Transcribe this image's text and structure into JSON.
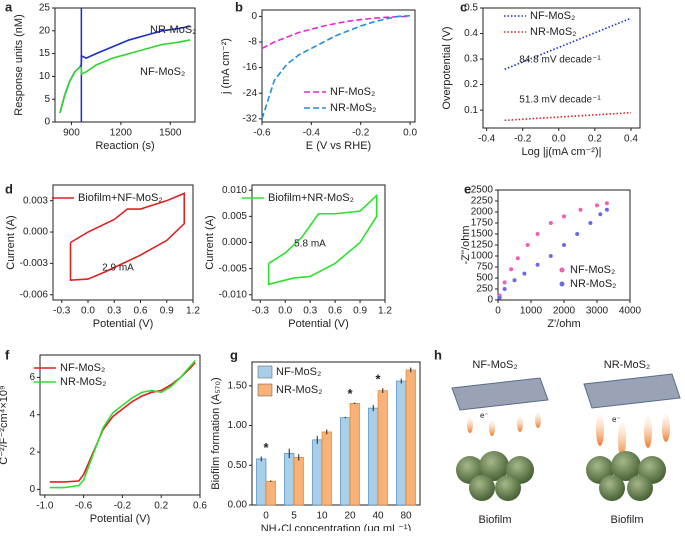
{
  "chart_data": [
    {
      "panel": "a",
      "type": "line",
      "x_label": "Reaction (s)",
      "y_label": "Response units (nM)",
      "x": [
        830,
        860,
        890,
        920,
        950,
        959,
        961,
        990,
        1050,
        1150,
        1250,
        1350,
        1450,
        1550,
        1620
      ],
      "series": [
        {
          "name": "NR-MoS₂",
          "color": "#1a2fc9",
          "line_style": "solid",
          "values": [
            2,
            6,
            9,
            11,
            12,
            12.5,
            14.5,
            14,
            15,
            16.5,
            18,
            19,
            20,
            20.5,
            21
          ]
        },
        {
          "name": "NF-MoS₂",
          "color": "#2ed62e",
          "line_style": "solid",
          "values": [
            2,
            6,
            9,
            11,
            12,
            12,
            10.5,
            11,
            12.5,
            14,
            15,
            16,
            17,
            17.5,
            18
          ]
        }
      ],
      "vline": 960,
      "xlim": [
        800,
        1650
      ],
      "xticks": [
        900,
        1200,
        1500
      ],
      "ylim": [
        0,
        25
      ],
      "yticks": [
        0,
        5,
        10,
        15,
        20,
        25
      ]
    },
    {
      "panel": "b",
      "type": "line",
      "x_label": "E (V vs RHE)",
      "y_label": "j (mA cm⁻²)",
      "x": [
        -0.6,
        -0.55,
        -0.5,
        -0.45,
        -0.4,
        -0.35,
        -0.3,
        -0.25,
        -0.2,
        -0.15,
        -0.1,
        -0.05,
        0.0
      ],
      "series": [
        {
          "name": "NF-MoS₂",
          "color": "#e627d6",
          "line_style": "dashed",
          "values": [
            -10,
            -8,
            -6.5,
            -5,
            -4,
            -3,
            -2.2,
            -1.5,
            -1,
            -0.6,
            -0.3,
            -0.1,
            0
          ]
        },
        {
          "name": "NR-MoS₂",
          "color": "#1e8fe0",
          "line_style": "dashed",
          "values": [
            -32,
            -20,
            -15,
            -12,
            -10,
            -8,
            -6,
            -4.5,
            -3,
            -1.8,
            -0.8,
            0,
            0.2
          ]
        }
      ],
      "xlim": [
        -0.6,
        0.02
      ],
      "xticks": [
        -0.6,
        -0.4,
        -0.2,
        {
          "value": 0,
          "label": "0.0"
        }
      ],
      "ylim": [
        -33,
        2
      ],
      "yticks": [
        -32,
        -24,
        -16,
        -8,
        0
      ]
    },
    {
      "panel": "c",
      "type": "line",
      "x_label": "Log |j(mA cm⁻²)|",
      "y_label": "Overpotential (V)",
      "x": [
        -0.3,
        0.4
      ],
      "series": [
        {
          "name": "NF-MoS₂",
          "color": "#1a2fc9",
          "line_style": "dotted",
          "values": [
            0.26,
            0.46
          ]
        },
        {
          "name": "NR-MoS₂",
          "color": "#e02020",
          "line_style": "dotted",
          "values": [
            0.06,
            0.09
          ]
        }
      ],
      "annotations": [
        "84.8 mV decade⁻¹",
        "51.3 mV decade⁻¹"
      ],
      "xlim": [
        -0.42,
        0.45
      ],
      "xticks": [
        -0.4,
        -0.2,
        {
          "value": 0,
          "label": "0.0"
        },
        0.2,
        0.4
      ],
      "ylim": [
        0.03,
        0.5
      ],
      "yticks": [
        0.1,
        0.2,
        0.3,
        0.4,
        0.5
      ]
    },
    {
      "panel": "d",
      "type": "line",
      "x_label": "Potential (V)",
      "y_label": "Current (A)",
      "x": [
        -0.2,
        0,
        0.3,
        0.45,
        0.6,
        0.9,
        1.1,
        1.1,
        0.9,
        0.6,
        0.4,
        0.2,
        0,
        -0.2,
        -0.2
      ],
      "series": [
        {
          "name": "Biofilm+NF-MoS₂",
          "color": "#e02020",
          "line_style": "solid",
          "values": [
            -0.001,
            0.0,
            0.0012,
            0.0022,
            0.0022,
            0.003,
            0.0037,
            0.0008,
            -0.0008,
            -0.0022,
            -0.003,
            -0.0038,
            -0.0045,
            -0.0046,
            -0.001
          ]
        }
      ],
      "annotations": [
        "2.9 mA"
      ],
      "xlim": [
        -0.4,
        1.2
      ],
      "xticks": [
        -0.3,
        {
          "value": 0,
          "label": "0.0"
        },
        0.3,
        0.6,
        0.9,
        1.2
      ],
      "ylim": [
        -0.0065,
        0.0045
      ],
      "yticks": [
        -0.006,
        -0.003,
        {
          "value": 0,
          "label": "0.000"
        },
        0.003
      ]
    },
    {
      "type": "line",
      "x_label": "Potential (V)",
      "y_label": "Current (A)",
      "x": [
        -0.2,
        0,
        0.2,
        0.4,
        0.6,
        0.9,
        1.1,
        1.1,
        0.9,
        0.6,
        0.3,
        0.1,
        -0.2,
        -0.2
      ],
      "series": [
        {
          "name": "Biofilm+NR-MoS₂",
          "color": "#2ee02e",
          "line_style": "solid",
          "values": [
            -0.004,
            -0.002,
            0.001,
            0.0055,
            0.0055,
            0.006,
            0.009,
            0.005,
            0.0,
            -0.004,
            -0.0065,
            -0.0068,
            -0.008,
            -0.004
          ]
        }
      ],
      "annotations": [
        "5.8 mA"
      ],
      "xlim": [
        -0.4,
        1.2
      ],
      "xticks": [
        -0.3,
        {
          "value": 0,
          "label": "0.0"
        },
        0.3,
        0.6,
        0.9,
        1.2
      ],
      "ylim": [
        -0.011,
        0.011
      ],
      "yticks": [
        {
          "value": -0.01,
          "label": "-0.010"
        },
        -0.005,
        {
          "value": 0,
          "label": "0.000"
        },
        0.005,
        {
          "value": 0.01,
          "label": "0.010"
        }
      ]
    },
    {
      "panel": "e",
      "type": "scatter",
      "x_label": "Z'/ohm",
      "y_label": "-Z''/ohm",
      "series": [
        {
          "name": "NF-MoS₂",
          "color": "#f05fb0",
          "x": [
            50,
            200,
            400,
            600,
            900,
            1200,
            1600,
            2000,
            2500,
            3000,
            3300
          ],
          "values": [
            100,
            400,
            700,
            950,
            1250,
            1500,
            1750,
            1900,
            2050,
            2150,
            2200
          ]
        },
        {
          "name": "NR-MoS₂",
          "color": "#6a6ae8",
          "x": [
            50,
            200,
            500,
            800,
            1200,
            1600,
            2000,
            2400,
            2800,
            3100,
            3300
          ],
          "values": [
            50,
            250,
            450,
            600,
            800,
            1000,
            1250,
            1500,
            1750,
            1950,
            2050
          ]
        }
      ],
      "xlim": [
        0,
        4000
      ],
      "xticks": [
        0,
        1000,
        2000,
        3000,
        4000
      ],
      "ylim": [
        0,
        2500
      ],
      "yticks": [
        0,
        250,
        500,
        750,
        1000,
        1250,
        1500,
        1750,
        2000,
        2250,
        2500
      ]
    },
    {
      "panel": "f",
      "type": "line",
      "x_label": "Potential (V)",
      "y_label": "C⁻²/F⁻²cm⁴×10⁹",
      "x": [
        -0.95,
        -0.8,
        -0.65,
        -0.6,
        -0.5,
        -0.4,
        -0.3,
        -0.2,
        -0.1,
        0,
        0.1,
        0.2,
        0.3,
        0.4,
        0.5,
        0.55
      ],
      "series": [
        {
          "name": "NF-MoS₂",
          "color": "#e02020",
          "line_style": "solid",
          "values": [
            0.4,
            0.4,
            0.45,
            0.8,
            2,
            3.2,
            3.9,
            4.3,
            4.7,
            5,
            5.2,
            5.3,
            5.6,
            6,
            6.5,
            6.8
          ]
        },
        {
          "name": "NR-MoS₂",
          "color": "#2ee02e",
          "line_style": "solid",
          "values": [
            0.1,
            0.1,
            0.2,
            0.5,
            1.9,
            3.3,
            4.1,
            4.5,
            4.9,
            5.2,
            5.3,
            5.2,
            5.5,
            6,
            6.6,
            6.9
          ]
        }
      ],
      "xlim": [
        -1.05,
        0.6
      ],
      "xticks": [
        {
          "value": -1,
          "label": "-1.0"
        },
        -0.6,
        -0.2,
        0.2,
        0.6
      ],
      "ylim": [
        -0.3,
        7.2
      ],
      "yticks": [
        0,
        2,
        4,
        6
      ]
    },
    {
      "panel": "g",
      "type": "bar",
      "x_label": "NH₄Cl concentration (μg mL⁻¹)",
      "y_label": "Biofilm formation (A₅₇₀)",
      "categories": [
        "0",
        "5",
        "10",
        "20",
        "40",
        "80"
      ],
      "series": [
        {
          "name": "NF-MoS₂",
          "color": "#a9cfe8",
          "values": [
            0.58,
            0.65,
            0.82,
            1.1,
            1.22,
            1.56
          ],
          "errors": [
            0.03,
            0.06,
            0.05,
            0.01,
            0.04,
            0.03
          ]
        },
        {
          "name": "NR-MoS₂",
          "color": "#f7b277",
          "values": [
            0.3,
            0.6,
            0.92,
            1.28,
            1.44,
            1.7
          ],
          "errors": [
            0.01,
            0.04,
            0.03,
            0.01,
            0.03,
            0.03
          ]
        }
      ],
      "annotations": [
        "*",
        "*",
        "*"
      ],
      "ylim": [
        0,
        1.8
      ],
      "yticks": [
        {
          "value": 0,
          "label": "0.00"
        },
        {
          "value": 0.5,
          "label": "0.50"
        },
        {
          "value": 1,
          "label": "1.00"
        },
        {
          "value": 1.5,
          "label": "1.50"
        }
      ]
    }
  ],
  "illustration": {
    "panel": "h",
    "left_title": "NF-MoS₂",
    "right_title": "NR-MoS₂",
    "left_label": "Biofilm",
    "right_label": "Biofilm",
    "electron": "e⁻"
  }
}
